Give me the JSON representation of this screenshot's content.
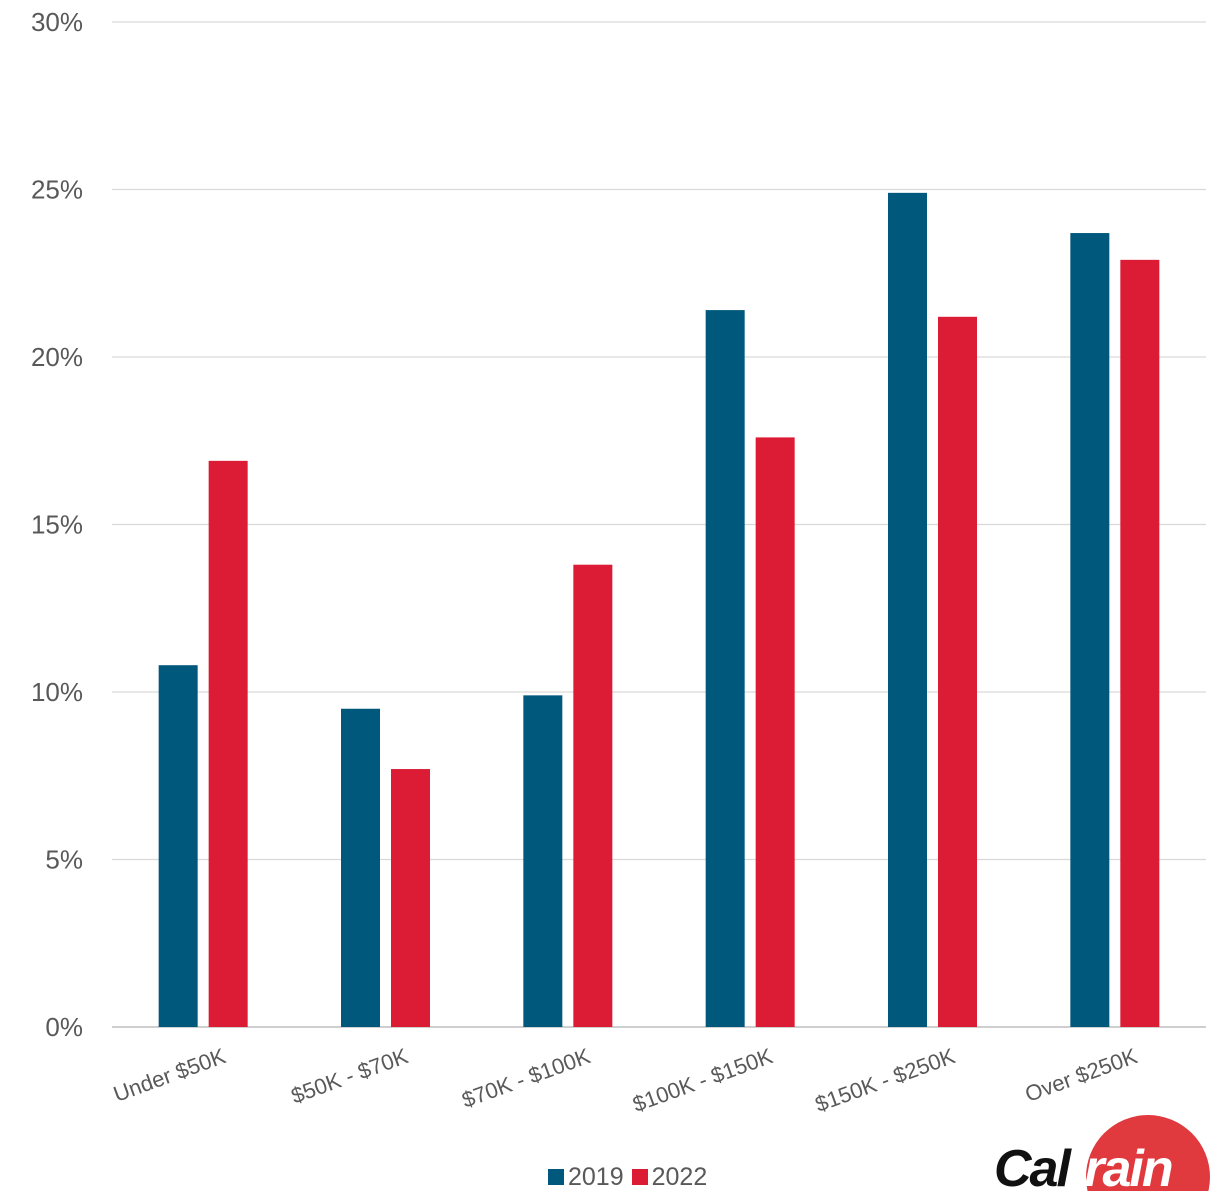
{
  "chart_data": {
    "type": "bar",
    "categories": [
      "Under $50K",
      "$50K - $70K",
      "$70K - $100K",
      "$100K - $150K",
      "$150K - $250K",
      "Over $250K"
    ],
    "series": [
      {
        "name": "2019",
        "color": "#00587c",
        "values": [
          10.8,
          9.5,
          9.9,
          21.4,
          24.9,
          23.7
        ]
      },
      {
        "name": "2022",
        "color": "#dc1b35",
        "values": [
          16.9,
          7.7,
          13.8,
          17.6,
          21.2,
          22.9
        ]
      }
    ],
    "yticks": [
      "0%",
      "5%",
      "10%",
      "15%",
      "20%",
      "25%",
      "30%"
    ],
    "ylim": [
      0,
      30
    ],
    "grid": true,
    "legend": "bottom-center",
    "title": "",
    "xlabel": "",
    "ylabel": ""
  },
  "logo": {
    "part1": "Cal",
    "part2": "train"
  }
}
